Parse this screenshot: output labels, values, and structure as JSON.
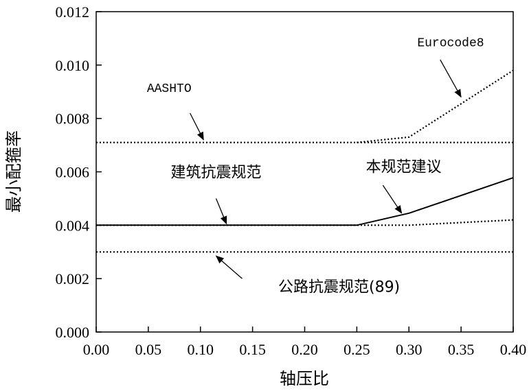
{
  "chart_data": {
    "type": "line",
    "xlabel": "轴压比",
    "ylabel": "最小配箍率",
    "xlim": [
      0,
      0.4
    ],
    "ylim": [
      0,
      0.012
    ],
    "grid": false,
    "xticks": [
      "0.00",
      "0.05",
      "0.10",
      "0.15",
      "0.20",
      "0.25",
      "0.30",
      "0.35",
      "0.40"
    ],
    "yticks": [
      "0.000",
      "0.002",
      "0.004",
      "0.006",
      "0.008",
      "0.010",
      "0.012"
    ],
    "series": [
      {
        "name": "AASHTO",
        "style": "dotted",
        "x": [
          0,
          0.4
        ],
        "y": [
          0.0071,
          0.0071
        ]
      },
      {
        "name": "Eurocode8",
        "style": "dotted",
        "x": [
          0.25,
          0.3,
          0.4
        ],
        "y": [
          0.0071,
          0.0073,
          0.0098
        ]
      },
      {
        "name": "建筑抗震规范",
        "style": "dotted",
        "x": [
          0,
          0.3,
          0.4
        ],
        "y": [
          0.004,
          0.004,
          0.0042
        ]
      },
      {
        "name": "本规范建议",
        "style": "solid",
        "x": [
          0,
          0.25,
          0.3,
          0.4
        ],
        "y": [
          0.004,
          0.004,
          0.00445,
          0.00578
        ]
      },
      {
        "name": "公路抗震规范(89)",
        "style": "dotted",
        "x": [
          0,
          0.4
        ],
        "y": [
          0.003,
          0.003
        ]
      }
    ],
    "annotations": [
      {
        "text": "Eurocode8",
        "font": "mono",
        "label_at": [
          0.34,
          0.0107
        ],
        "arrow_from": [
          0.33,
          0.0102
        ],
        "arrow_to": [
          0.35,
          0.0088
        ]
      },
      {
        "text": "AASHTO",
        "font": "mono",
        "label_at": [
          0.07,
          0.009
        ],
        "arrow_from": [
          0.09,
          0.0082
        ],
        "arrow_to": [
          0.103,
          0.0072
        ]
      },
      {
        "text": "建筑抗震规范",
        "font": "sans",
        "label_at": [
          0.115,
          0.0058
        ],
        "arrow_from": [
          0.115,
          0.005
        ],
        "arrow_to": [
          0.125,
          0.00405
        ]
      },
      {
        "text": "本规范建议",
        "font": "sans",
        "label_at": [
          0.295,
          0.006
        ],
        "arrow_from": [
          0.275,
          0.0055
        ],
        "arrow_to": [
          0.293,
          0.00445
        ]
      },
      {
        "text": "公路抗震规范(89)",
        "font": "sans",
        "label_at": [
          0.233,
          0.0015
        ],
        "arrow_from": [
          0.14,
          0.002
        ],
        "arrow_to": [
          0.115,
          0.00285
        ]
      }
    ]
  }
}
